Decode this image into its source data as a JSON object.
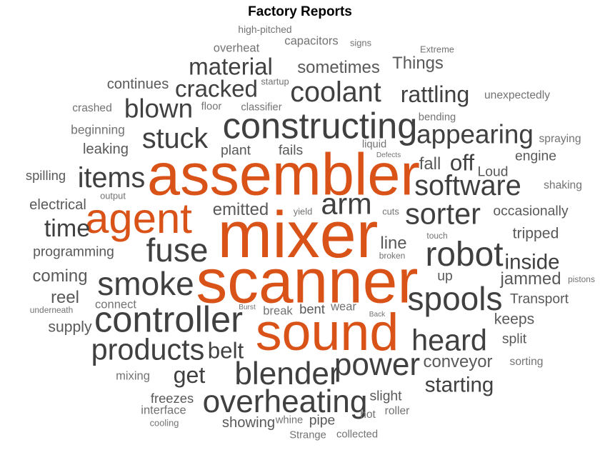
{
  "chart_data": {
    "type": "wordcloud",
    "title": "Factory Reports",
    "colors": {
      "highlight": "#d95319",
      "dark": "#404040",
      "mid": "#595959",
      "light": "#737373"
    },
    "words": [
      {
        "text": "mixer",
        "size": 10,
        "color": "highlight"
      },
      {
        "text": "scanner",
        "size": 9.5,
        "color": "highlight"
      },
      {
        "text": "assembler",
        "size": 9,
        "color": "highlight"
      },
      {
        "text": "sound",
        "size": 8,
        "color": "highlight"
      },
      {
        "text": "agent",
        "size": 6.5,
        "color": "highlight"
      },
      {
        "text": "constructing",
        "size": 5.5,
        "color": "dark"
      },
      {
        "text": "controller",
        "size": 5.5,
        "color": "dark"
      },
      {
        "text": "robot",
        "size": 5.2,
        "color": "dark"
      },
      {
        "text": "smoke",
        "size": 5,
        "color": "dark"
      },
      {
        "text": "fuse",
        "size": 5,
        "color": "dark"
      },
      {
        "text": "spools",
        "size": 5,
        "color": "dark"
      },
      {
        "text": "power",
        "size": 4.8,
        "color": "dark"
      },
      {
        "text": "blender",
        "size": 4.8,
        "color": "dark"
      },
      {
        "text": "overheating",
        "size": 4.8,
        "color": "dark"
      },
      {
        "text": "products",
        "size": 4.5,
        "color": "dark"
      },
      {
        "text": "heard",
        "size": 4.5,
        "color": "dark"
      },
      {
        "text": "arm",
        "size": 4.5,
        "color": "dark"
      },
      {
        "text": "sorter",
        "size": 4.5,
        "color": "dark"
      },
      {
        "text": "software",
        "size": 4.3,
        "color": "dark"
      },
      {
        "text": "stuck",
        "size": 4.3,
        "color": "dark"
      },
      {
        "text": "coolant",
        "size": 4.3,
        "color": "dark"
      },
      {
        "text": "items",
        "size": 4.3,
        "color": "dark"
      },
      {
        "text": "blown",
        "size": 4,
        "color": "dark"
      },
      {
        "text": "appearing",
        "size": 4,
        "color": "dark"
      },
      {
        "text": "time",
        "size": 3.7,
        "color": "dark"
      },
      {
        "text": "cracked",
        "size": 3.6,
        "color": "dark"
      },
      {
        "text": "material",
        "size": 3.6,
        "color": "dark"
      },
      {
        "text": "rattling",
        "size": 3.5,
        "color": "dark"
      },
      {
        "text": "get",
        "size": 3.5,
        "color": "dark"
      },
      {
        "text": "belt",
        "size": 3.4,
        "color": "dark"
      },
      {
        "text": "off",
        "size": 3.4,
        "color": "dark"
      },
      {
        "text": "inside",
        "size": 3.2,
        "color": "dark"
      },
      {
        "text": "starting",
        "size": 3.2,
        "color": "dark"
      },
      {
        "text": "conveyor",
        "size": 2.6,
        "color": "mid"
      },
      {
        "text": "jammed",
        "size": 2.6,
        "color": "mid"
      },
      {
        "text": "emitted",
        "size": 2.6,
        "color": "mid"
      },
      {
        "text": "sometimes",
        "size": 2.6,
        "color": "mid"
      },
      {
        "text": "Things",
        "size": 2.6,
        "color": "mid"
      },
      {
        "text": "line",
        "size": 2.6,
        "color": "mid"
      },
      {
        "text": "fall",
        "size": 2.6,
        "color": "mid"
      },
      {
        "text": "coming",
        "size": 2.6,
        "color": "mid"
      },
      {
        "text": "reel",
        "size": 2.6,
        "color": "mid"
      },
      {
        "text": "showing",
        "size": 2.2,
        "color": "mid"
      },
      {
        "text": "supply",
        "size": 2.3,
        "color": "mid"
      },
      {
        "text": "tripped",
        "size": 2.3,
        "color": "mid"
      },
      {
        "text": "keeps",
        "size": 2.3,
        "color": "mid"
      },
      {
        "text": "Transport",
        "size": 2.1,
        "color": "mid"
      },
      {
        "text": "electrical",
        "size": 2.2,
        "color": "mid"
      },
      {
        "text": "programming",
        "size": 2.1,
        "color": "mid"
      },
      {
        "text": "continues",
        "size": 2.2,
        "color": "mid"
      },
      {
        "text": "leaking",
        "size": 2.2,
        "color": "mid"
      },
      {
        "text": "spilling",
        "size": 2,
        "color": "mid"
      },
      {
        "text": "occasionally",
        "size": 2.1,
        "color": "mid"
      },
      {
        "text": "engine",
        "size": 2.1,
        "color": "mid"
      },
      {
        "text": "Loud",
        "size": 2.1,
        "color": "mid"
      },
      {
        "text": "plant",
        "size": 2.1,
        "color": "mid"
      },
      {
        "text": "fails",
        "size": 2.1,
        "color": "mid"
      },
      {
        "text": "split",
        "size": 2.1,
        "color": "mid"
      },
      {
        "text": "up",
        "size": 2.1,
        "color": "mid"
      },
      {
        "text": "pipe",
        "size": 2.1,
        "color": "mid"
      },
      {
        "text": "slight",
        "size": 2.1,
        "color": "mid"
      },
      {
        "text": "freezes",
        "size": 2,
        "color": "mid"
      },
      {
        "text": "bent",
        "size": 2,
        "color": "mid"
      },
      {
        "text": "beginning",
        "size": 1.9,
        "color": "light"
      },
      {
        "text": "overheat",
        "size": 1.8,
        "color": "light"
      },
      {
        "text": "capacitors",
        "size": 1.8,
        "color": "light"
      },
      {
        "text": "wear",
        "size": 1.8,
        "color": "light"
      },
      {
        "text": "break",
        "size": 1.8,
        "color": "light"
      },
      {
        "text": "connect",
        "size": 1.8,
        "color": "light"
      },
      {
        "text": "mixing",
        "size": 1.8,
        "color": "light"
      },
      {
        "text": "interface",
        "size": 1.8,
        "color": "light"
      },
      {
        "text": "roller",
        "size": 1.7,
        "color": "light"
      },
      {
        "text": "crashed",
        "size": 1.7,
        "color": "light"
      },
      {
        "text": "shaking",
        "size": 1.7,
        "color": "light"
      },
      {
        "text": "spraying",
        "size": 1.7,
        "color": "light"
      },
      {
        "text": "unexpectedly",
        "size": 1.7,
        "color": "light"
      },
      {
        "text": "sorting",
        "size": 1.7,
        "color": "light"
      },
      {
        "text": "hot",
        "size": 1.7,
        "color": "light"
      },
      {
        "text": "whine",
        "size": 1.6,
        "color": "light"
      },
      {
        "text": "Strange",
        "size": 1.6,
        "color": "light"
      },
      {
        "text": "collected",
        "size": 1.6,
        "color": "light"
      },
      {
        "text": "classifier",
        "size": 1.6,
        "color": "light"
      },
      {
        "text": "floor",
        "size": 1.6,
        "color": "light"
      },
      {
        "text": "liquid",
        "size": 1.6,
        "color": "light"
      },
      {
        "text": "bending",
        "size": 1.6,
        "color": "light"
      },
      {
        "text": "high-pitched",
        "size": 1.5,
        "color": "light"
      },
      {
        "text": "startup",
        "size": 1.4,
        "color": "light"
      },
      {
        "text": "signs",
        "size": 1.4,
        "color": "light"
      },
      {
        "text": "Extreme",
        "size": 1.4,
        "color": "light"
      },
      {
        "text": "cooling",
        "size": 1.4,
        "color": "light"
      },
      {
        "text": "cuts",
        "size": 1.4,
        "color": "light"
      },
      {
        "text": "yield",
        "size": 1.4,
        "color": "light"
      },
      {
        "text": "output",
        "size": 1.4,
        "color": "light"
      },
      {
        "text": "touch",
        "size": 1.3,
        "color": "light"
      },
      {
        "text": "pistons",
        "size": 1.3,
        "color": "light"
      },
      {
        "text": "broken",
        "size": 1.3,
        "color": "light"
      },
      {
        "text": "underneath",
        "size": 1.3,
        "color": "light"
      },
      {
        "text": "Defects",
        "size": 1.1,
        "color": "light"
      },
      {
        "text": "Burst",
        "size": 1.1,
        "color": "light"
      },
      {
        "text": "Back",
        "size": 1.1,
        "color": "light"
      }
    ]
  }
}
